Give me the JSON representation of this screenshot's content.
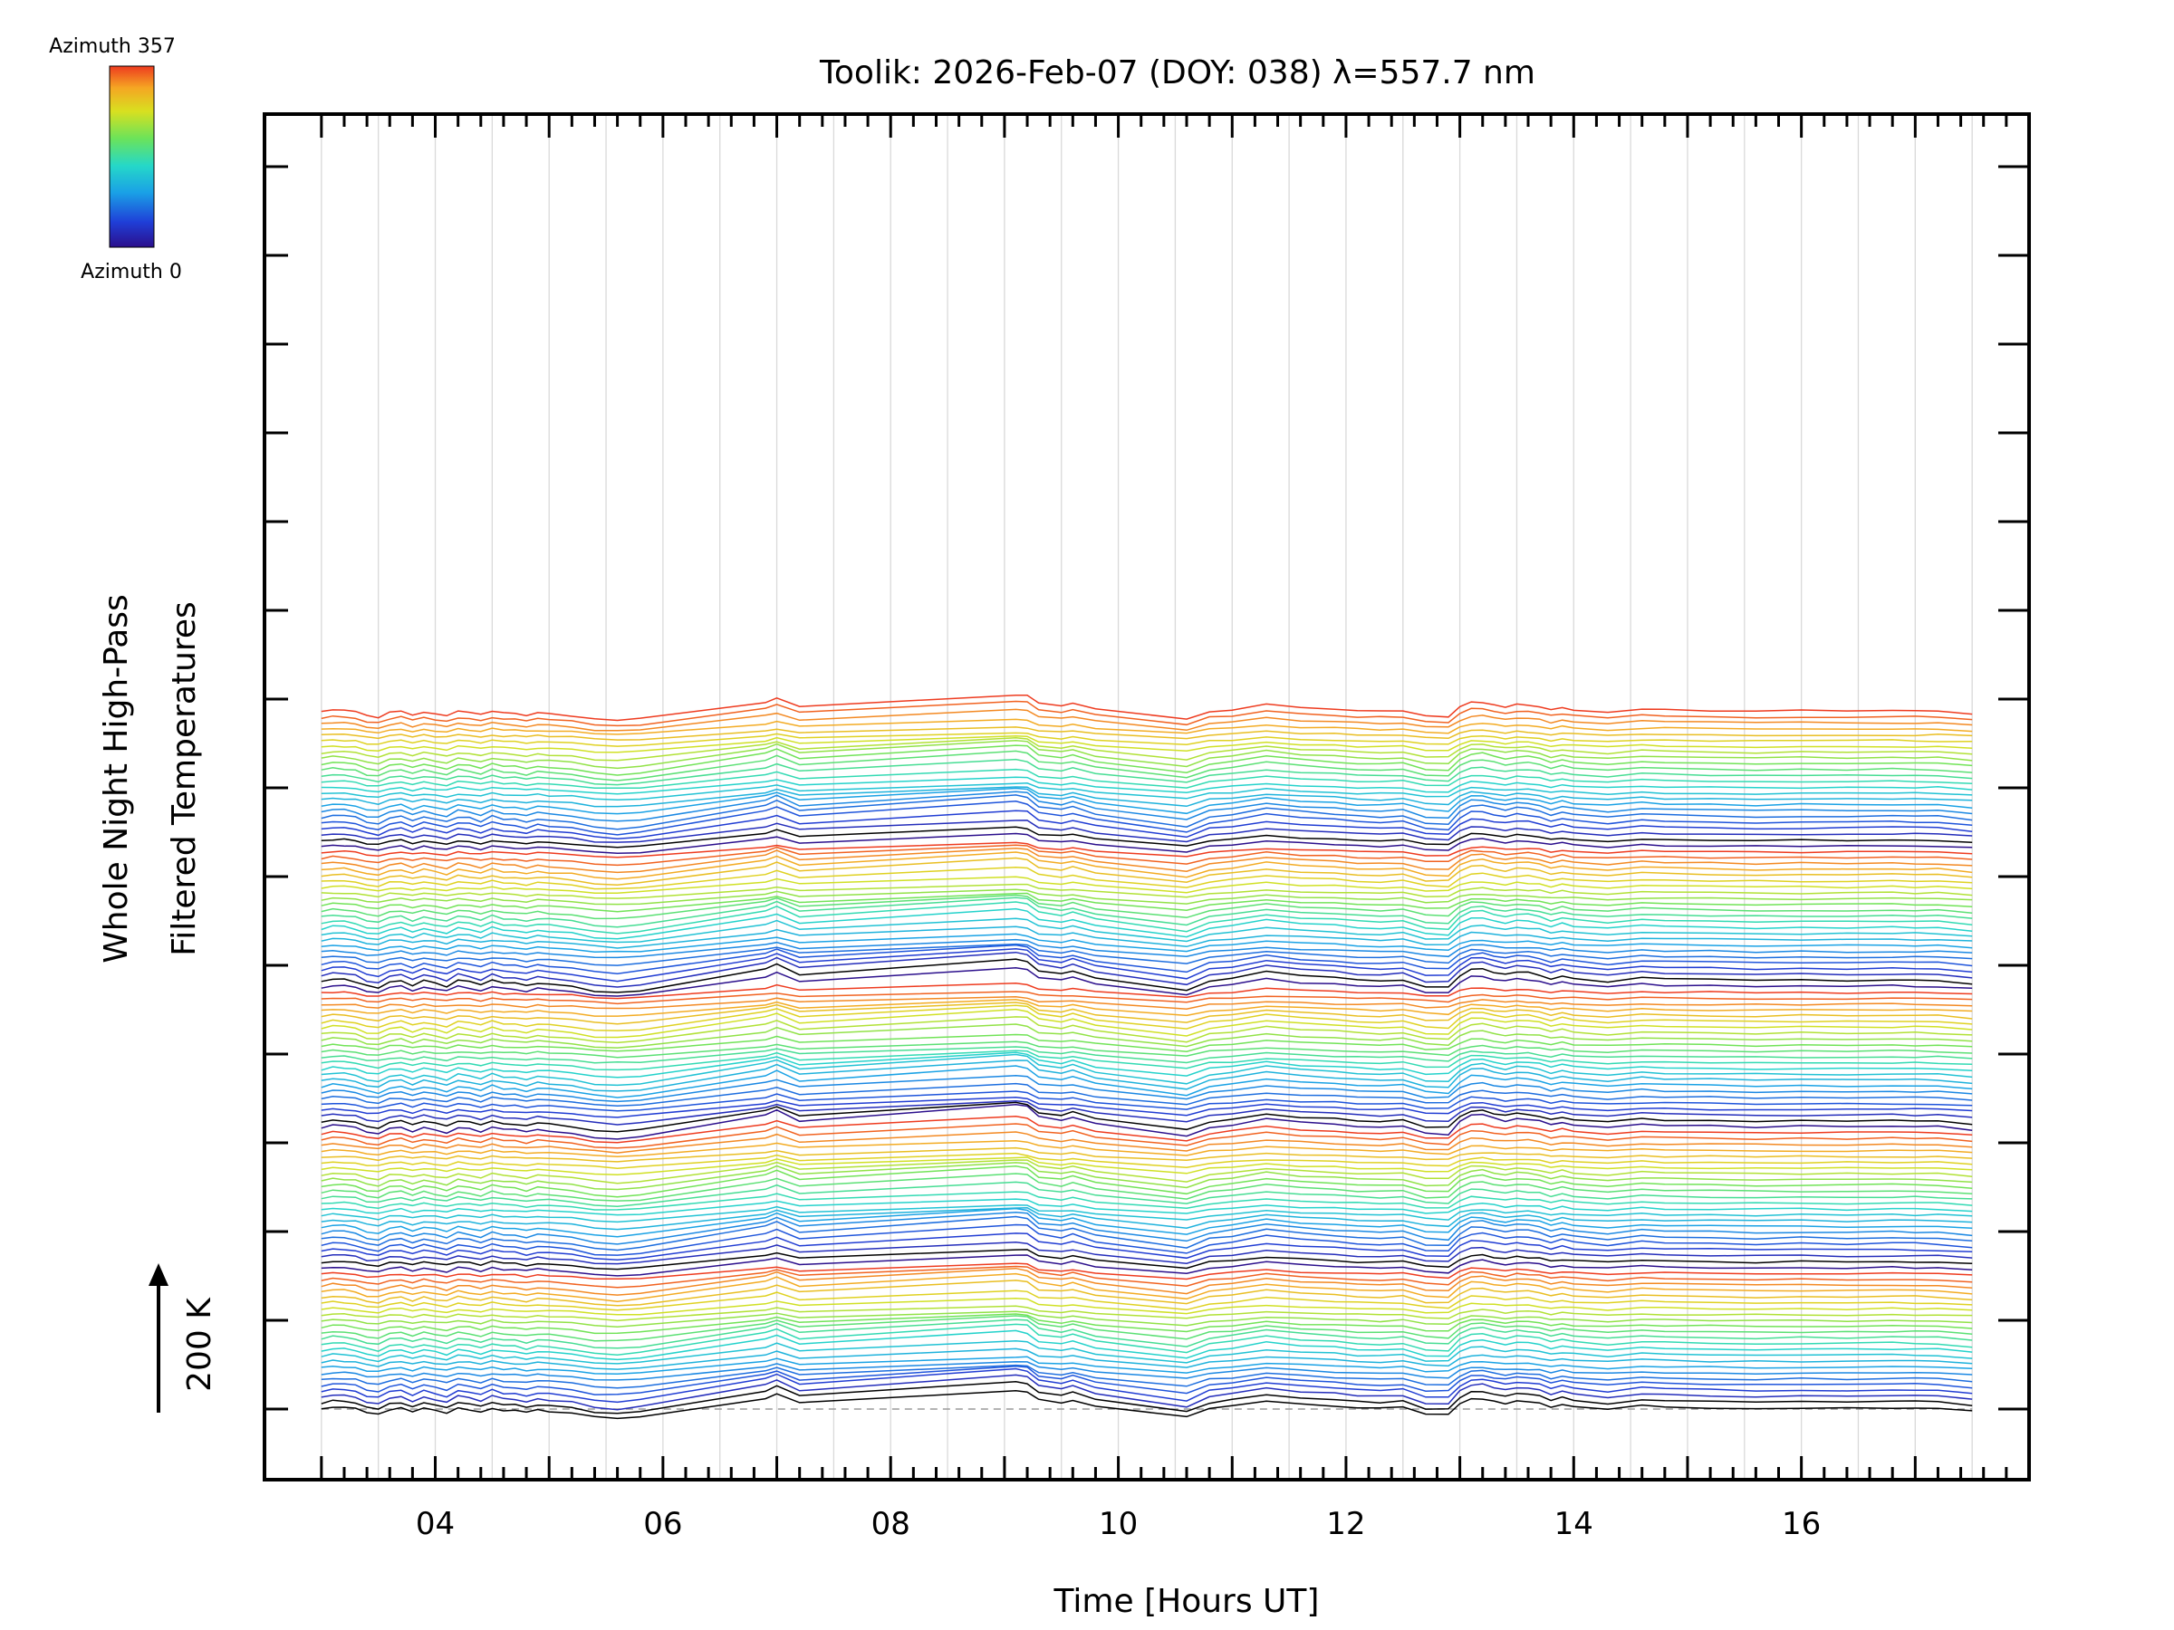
{
  "chart_data": {
    "type": "line",
    "title": "Toolik: 2026-Feb-07 (DOY: 038) λ=557.7 nm",
    "xlabel": "Time [Hours UT]",
    "ylabel_line1": "Whole Night High-Pass",
    "ylabel_line2": "Filtered Temperatures",
    "scale_label": "200 K",
    "colorbar": {
      "top_label": "Azimuth 357",
      "bottom_label": "Azimuth 0",
      "colors": [
        "#2b0f8c",
        "#1f3fd8",
        "#1aa0e6",
        "#25d8c8",
        "#6be35a",
        "#d8e020",
        "#f5a623",
        "#ee3b1f"
      ]
    },
    "xlim": [
      2.5,
      18.0
    ],
    "x_ticks": [
      "04",
      "06",
      "08",
      "10",
      "12",
      "14",
      "16"
    ],
    "x_tick_values": [
      4,
      6,
      8,
      10,
      12,
      14,
      16
    ],
    "y_major_ticks": 15,
    "n_series": 120,
    "series_offset_K": 20,
    "times": [
      3.0,
      3.1,
      3.2,
      3.3,
      3.4,
      3.5,
      3.6,
      3.7,
      3.8,
      3.9,
      4.0,
      4.1,
      4.2,
      4.3,
      4.4,
      4.5,
      4.6,
      4.7,
      4.8,
      4.9,
      5.0,
      5.2,
      5.4,
      5.6,
      5.8,
      6.9,
      7.0,
      7.2,
      9.1,
      9.2,
      9.3,
      9.5,
      9.6,
      9.8,
      10.6,
      10.8,
      11.0,
      11.3,
      11.6,
      11.9,
      12.1,
      12.3,
      12.5,
      12.7,
      12.9,
      13.0,
      13.1,
      13.2,
      13.3,
      13.4,
      13.5,
      13.6,
      13.7,
      13.8,
      13.9,
      14.0,
      14.3,
      14.6,
      14.8,
      15.2,
      15.6,
      16.0,
      16.4,
      16.8,
      17.0,
      17.2,
      17.5
    ],
    "wave_pattern_K": [
      0,
      8,
      6,
      0,
      -15,
      -20,
      -2,
      3,
      -12,
      2,
      -6,
      -15,
      3,
      -2,
      -12,
      4,
      -5,
      -6,
      -14,
      -4,
      -8,
      -15,
      -30,
      -35,
      -28,
      40,
      55,
      22,
      70,
      65,
      35,
      25,
      35,
      12,
      -28,
      2,
      10,
      30,
      18,
      12,
      5,
      2,
      6,
      -18,
      -20,
      18,
      38,
      40,
      30,
      22,
      30,
      28,
      22,
      8,
      18,
      10,
      0,
      12,
      8,
      6,
      3,
      5,
      4,
      6,
      5,
      4,
      -6
    ],
    "baseline_K": 0
  }
}
